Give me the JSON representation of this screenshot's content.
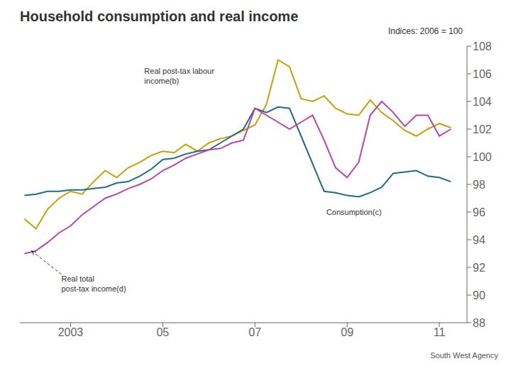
{
  "chart_data": {
    "type": "line",
    "title": "Household consumption and real income",
    "subtitle": "Indices: 2006 = 100",
    "footer": "South West Agency",
    "x": [
      2002.0,
      2002.25,
      2002.5,
      2002.75,
      2003.0,
      2003.25,
      2003.5,
      2003.75,
      2004.0,
      2004.25,
      2004.5,
      2004.75,
      2005.0,
      2005.25,
      2005.5,
      2005.75,
      2006.0,
      2006.25,
      2006.5,
      2006.75,
      2007.0,
      2007.25,
      2007.5,
      2007.75,
      2008.0,
      2008.25,
      2008.5,
      2008.75,
      2009.0,
      2009.25,
      2009.5,
      2009.75,
      2010.0,
      2010.25,
      2010.5,
      2010.75,
      2011.0,
      2011.25
    ],
    "series": [
      {
        "color": "#C8A000",
        "values": [
          95.5,
          94.8,
          96.2,
          97.0,
          97.5,
          97.3,
          98.2,
          99.0,
          98.5,
          99.2,
          99.6,
          100.1,
          100.4,
          100.3,
          100.9,
          100.4,
          101.0,
          101.3,
          101.5,
          101.9,
          102.3,
          103.8,
          107.0,
          106.5,
          104.2,
          104.0,
          104.4,
          103.5,
          103.1,
          103.0,
          104.1,
          103.2,
          102.6,
          101.9,
          101.5,
          102.0,
          102.4,
          102.1
        ]
      },
      {
        "color": "#1E6B8C",
        "values": [
          97.2,
          97.3,
          97.5,
          97.5,
          97.6,
          97.6,
          97.7,
          97.8,
          98.1,
          98.2,
          98.6,
          99.1,
          99.8,
          99.9,
          100.2,
          100.4,
          100.5,
          101.0,
          101.5,
          102.0,
          103.5,
          103.2,
          103.6,
          103.5,
          101.5,
          99.5,
          97.5,
          97.4,
          97.2,
          97.1,
          97.4,
          97.8,
          98.8,
          98.9,
          99.0,
          98.6,
          98.5,
          98.2
        ]
      },
      {
        "color": "#BB44AA",
        "values": [
          93.0,
          93.2,
          93.8,
          94.5,
          95.0,
          95.8,
          96.4,
          97.0,
          97.3,
          97.7,
          98.0,
          98.4,
          99.0,
          99.4,
          99.9,
          100.2,
          100.5,
          100.6,
          101.0,
          101.2,
          103.5,
          103.0,
          102.5,
          102.0,
          102.5,
          103.0,
          101.2,
          99.2,
          98.5,
          99.6,
          103.0,
          104.0,
          103.2,
          102.2,
          103.0,
          103.0,
          101.5,
          102.0
        ]
      }
    ],
    "xlim": [
      2001.9,
      2011.6
    ],
    "xticks": [
      2003,
      {
        "value": 2005,
        "label": "05"
      },
      {
        "value": 2007,
        "label": "07"
      },
      {
        "value": 2009,
        "label": "09"
      },
      {
        "value": 2011,
        "label": "11"
      }
    ],
    "ylim": [
      88,
      108
    ],
    "yticks": [
      88,
      90,
      92,
      94,
      96,
      98,
      100,
      102,
      104,
      106,
      108
    ],
    "grid": false,
    "annotations": [
      {
        "text": "Real post-tax labour\nincome(b)",
        "x": 2004.6,
        "y": 106.5
      },
      {
        "text": "Consumption(c)",
        "x": 2008.55,
        "y": 96.3
      },
      {
        "text": "Real total\npost-tax income(d)",
        "x": 2002.8,
        "y": 91.5,
        "arrow_to": [
          2002.15,
          93.2
        ]
      }
    ]
  }
}
